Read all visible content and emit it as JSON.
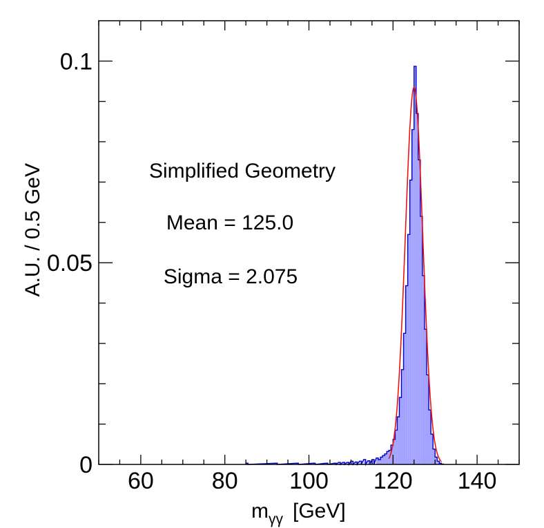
{
  "chart_data": {
    "type": "histogram",
    "xlabel": "m",
    "xlabel_subscript": "γγ",
    "xlabel_unit": "[GeV]",
    "ylabel": "A.U. / 0.5 GeV",
    "xlim": [
      50,
      150
    ],
    "ylim": [
      0,
      0.11
    ],
    "x_ticks": [
      60,
      80,
      100,
      120,
      140
    ],
    "x_tick_labels": [
      "60",
      "80",
      "100",
      "120",
      "140"
    ],
    "y_ticks": [
      0,
      0.05,
      0.1
    ],
    "y_tick_labels": [
      "0",
      "0.05",
      "0.1"
    ],
    "bin_width": 0.5,
    "annotations": [
      "Simplified Geometry",
      "Mean = 125.0",
      "Sigma = 2.075"
    ],
    "histogram": {
      "name": "Simplified Geometry",
      "fill_color": "#a3a3ff",
      "line_color": "#0000cc",
      "bins": [
        [
          85.0,
          0.0003
        ],
        [
          92.0,
          0.0003
        ],
        [
          97.0,
          0.0003
        ],
        [
          101.0,
          0.0003
        ],
        [
          104.0,
          0.0003
        ],
        [
          106.0,
          0.0003
        ],
        [
          107.0,
          0.0005
        ],
        [
          108.0,
          0.0005
        ],
        [
          109.0,
          0.0005
        ],
        [
          110.0,
          0.0008
        ],
        [
          111.0,
          0.0006
        ],
        [
          112.0,
          0.0008
        ],
        [
          113.0,
          0.0012
        ],
        [
          114.0,
          0.0009
        ],
        [
          115.0,
          0.0012
        ],
        [
          116.0,
          0.0016
        ],
        [
          116.5,
          0.0012
        ],
        [
          117.0,
          0.0018
        ],
        [
          117.5,
          0.0022
        ],
        [
          118.0,
          0.0026
        ],
        [
          118.5,
          0.0032
        ],
        [
          119.0,
          0.0035
        ],
        [
          119.5,
          0.0048
        ],
        [
          120.0,
          0.0062
        ],
        [
          120.5,
          0.0085
        ],
        [
          121.0,
          0.0118
        ],
        [
          121.5,
          0.0166
        ],
        [
          122.0,
          0.0235
        ],
        [
          122.5,
          0.0325
        ],
        [
          123.0,
          0.0443
        ],
        [
          123.5,
          0.057
        ],
        [
          124.0,
          0.0705
        ],
        [
          124.5,
          0.083
        ],
        [
          125.0,
          0.0987
        ],
        [
          125.5,
          0.087
        ],
        [
          126.0,
          0.0755
        ],
        [
          126.5,
          0.0615
        ],
        [
          127.0,
          0.0468
        ],
        [
          127.5,
          0.0335
        ],
        [
          128.0,
          0.0222
        ],
        [
          128.5,
          0.0135
        ],
        [
          129.0,
          0.0075
        ],
        [
          129.5,
          0.0038
        ],
        [
          130.0,
          0.0018
        ],
        [
          130.5,
          0.0008
        ],
        [
          131.0,
          0.0003
        ],
        [
          131.5,
          0.0001
        ]
      ]
    },
    "fit": {
      "type": "gaussian",
      "color": "#ee1111",
      "mean": 125.0,
      "sigma": 2.075,
      "amplitude": 0.0935,
      "range": [
        119.0,
        131.5
      ]
    }
  }
}
